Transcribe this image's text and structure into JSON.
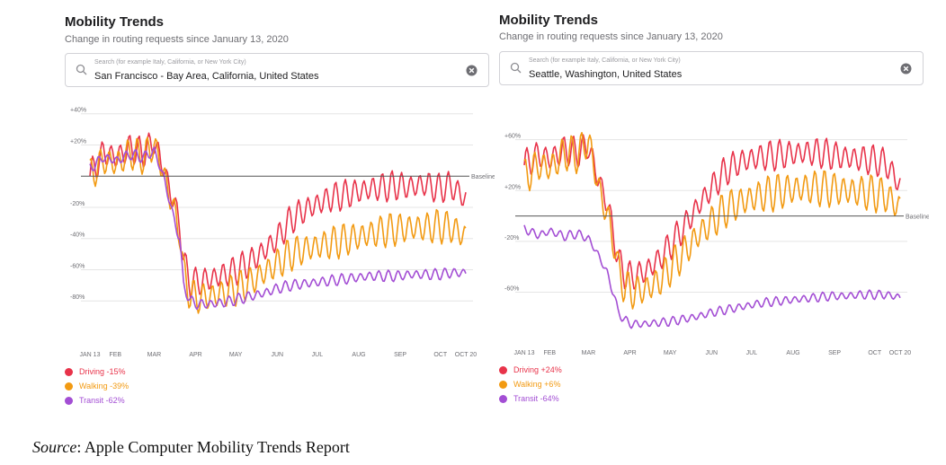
{
  "search_placeholder": "Search (for example Italy, California, or New York City)",
  "source": {
    "label": "Source",
    "text": ": Apple Computer Mobility Trends Report"
  },
  "colors": {
    "driving": "#e8334a",
    "walking": "#f29a12",
    "transit": "#a34ed4",
    "baseline": "#555555",
    "grid": "#e5e5e5"
  },
  "panels": [
    {
      "title": "Mobility Trends",
      "subtitle": "Change in routing requests since January 13, 2020",
      "location": "San Francisco - Bay Area, California, United States",
      "legend": [
        "Driving -15%",
        "Walking -39%",
        "Transit -62%"
      ]
    },
    {
      "title": "Mobility Trends",
      "subtitle": "Change in routing requests since January 13, 2020",
      "location": "Seattle, Washington, United States",
      "legend": [
        "Driving +24%",
        "Walking +6%",
        "Transit -64%"
      ]
    }
  ],
  "chart_data": [
    {
      "type": "line",
      "title": "San Francisco - Bay Area, California, United States",
      "x_tick_labels": [
        "JAN 13",
        "FEB",
        "MAR",
        "APR",
        "MAY",
        "JUN",
        "JUL",
        "AUG",
        "SEP",
        "OCT",
        "OCT 20"
      ],
      "x_tick_days": [
        0,
        19,
        48,
        79,
        109,
        140,
        170,
        201,
        232,
        262,
        281
      ],
      "x_range_days": [
        0,
        281
      ],
      "y_ticks": [
        40,
        20,
        -20,
        -40,
        -60,
        -80
      ],
      "y_tick_labels": [
        "+40%",
        "+20%",
        "-20%",
        "-40%",
        "-60%",
        "-80%"
      ],
      "ylim": [
        -100,
        45
      ],
      "baseline": 0,
      "baseline_label": "Baseline",
      "series": [
        {
          "name": "Driving",
          "end_value": -15,
          "x": [
            0,
            10,
            20,
            30,
            40,
            48,
            55,
            62,
            67,
            70,
            75,
            80,
            90,
            100,
            110,
            120,
            130,
            140,
            150,
            160,
            170,
            180,
            190,
            200,
            210,
            220,
            230,
            240,
            250,
            260,
            270,
            281
          ],
          "y": [
            0,
            15,
            12,
            18,
            15,
            22,
            5,
            -15,
            -30,
            -55,
            -68,
            -68,
            -66,
            -63,
            -60,
            -55,
            -48,
            -40,
            -28,
            -22,
            -18,
            -14,
            -12,
            -10,
            -8,
            -7,
            -6,
            -7,
            -5,
            -8,
            -6,
            -15
          ],
          "amplitude": 8
        },
        {
          "name": "Walking",
          "end_value": -39,
          "x": [
            0,
            10,
            20,
            30,
            40,
            48,
            55,
            62,
            67,
            70,
            75,
            80,
            90,
            100,
            110,
            120,
            130,
            140,
            150,
            160,
            170,
            180,
            190,
            200,
            210,
            220,
            230,
            240,
            250,
            260,
            270,
            281
          ],
          "y": [
            0,
            10,
            8,
            15,
            12,
            20,
            2,
            -20,
            -35,
            -62,
            -76,
            -78,
            -77,
            -75,
            -72,
            -68,
            -62,
            -56,
            -50,
            -47,
            -45,
            -43,
            -41,
            -39,
            -37,
            -35,
            -34,
            -33,
            -33,
            -32,
            -33,
            -39
          ],
          "amplitude": 9
        },
        {
          "name": "Transit",
          "end_value": -62,
          "x": [
            0,
            10,
            20,
            30,
            40,
            48,
            55,
            62,
            67,
            70,
            75,
            80,
            90,
            100,
            110,
            120,
            130,
            140,
            150,
            160,
            170,
            180,
            190,
            200,
            210,
            220,
            230,
            240,
            250,
            260,
            270,
            281
          ],
          "y": [
            5,
            12,
            10,
            14,
            12,
            16,
            0,
            -25,
            -40,
            -70,
            -80,
            -82,
            -82,
            -81,
            -79,
            -77,
            -75,
            -72,
            -70,
            -69,
            -68,
            -67,
            -66,
            -65,
            -64,
            -64,
            -64,
            -63,
            -63,
            -63,
            -62,
            -62
          ],
          "amplitude": 3
        }
      ]
    },
    {
      "type": "line",
      "title": "Seattle, Washington, United States",
      "x_tick_labels": [
        "JAN 13",
        "FEB",
        "MAR",
        "APR",
        "MAY",
        "JUN",
        "JUL",
        "AUG",
        "SEP",
        "OCT",
        "OCT 20"
      ],
      "x_tick_days": [
        0,
        19,
        48,
        79,
        109,
        140,
        170,
        201,
        232,
        262,
        281
      ],
      "x_range_days": [
        0,
        281
      ],
      "y_ticks": [
        60,
        20,
        -20,
        -60
      ],
      "y_tick_labels": [
        "+60%",
        "+20%",
        "-20%",
        "-60%"
      ],
      "ylim": [
        -90,
        88
      ],
      "baseline": 0,
      "baseline_label": "Baseline",
      "series": [
        {
          "name": "Driving",
          "end_value": 24,
          "x": [
            0,
            10,
            20,
            30,
            40,
            48,
            55,
            62,
            67,
            70,
            75,
            80,
            90,
            100,
            110,
            120,
            130,
            140,
            150,
            160,
            170,
            180,
            190,
            200,
            210,
            220,
            230,
            240,
            250,
            260,
            270,
            281
          ],
          "y": [
            40,
            48,
            45,
            52,
            50,
            55,
            30,
            10,
            -15,
            -35,
            -45,
            -48,
            -44,
            -35,
            -22,
            -8,
            8,
            22,
            35,
            42,
            45,
            47,
            48,
            49,
            50,
            50,
            48,
            46,
            45,
            44,
            42,
            24
          ],
          "amplitude": 10
        },
        {
          "name": "Walking",
          "end_value": 6,
          "x": [
            0,
            10,
            20,
            30,
            40,
            48,
            55,
            62,
            67,
            70,
            75,
            80,
            90,
            100,
            110,
            120,
            130,
            140,
            150,
            160,
            170,
            180,
            190,
            200,
            210,
            220,
            230,
            240,
            250,
            260,
            270,
            281
          ],
          "y": [
            30,
            40,
            38,
            50,
            48,
            60,
            25,
            0,
            -20,
            -42,
            -55,
            -60,
            -58,
            -52,
            -40,
            -28,
            -15,
            -5,
            5,
            10,
            14,
            17,
            19,
            21,
            22,
            22,
            21,
            20,
            19,
            18,
            16,
            6
          ],
          "amplitude": 12
        },
        {
          "name": "Transit",
          "end_value": -64,
          "x": [
            0,
            10,
            20,
            30,
            40,
            48,
            55,
            62,
            67,
            70,
            75,
            80,
            90,
            100,
            110,
            120,
            130,
            140,
            150,
            160,
            170,
            180,
            190,
            200,
            210,
            220,
            230,
            240,
            250,
            260,
            270,
            281
          ],
          "y": [
            -10,
            -15,
            -12,
            -16,
            -14,
            -18,
            -30,
            -45,
            -62,
            -75,
            -82,
            -85,
            -85,
            -84,
            -83,
            -81,
            -79,
            -76,
            -74,
            -72,
            -70,
            -68,
            -67,
            -66,
            -65,
            -64,
            -63,
            -63,
            -62,
            -62,
            -62,
            -64
          ],
          "amplitude": 3
        }
      ]
    }
  ]
}
